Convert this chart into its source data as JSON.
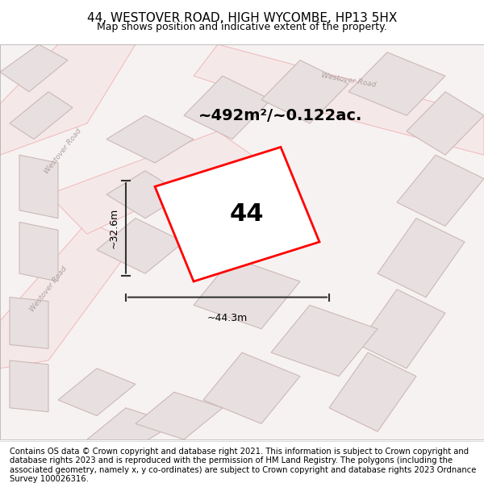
{
  "title": "44, WESTOVER ROAD, HIGH WYCOMBE, HP13 5HX",
  "subtitle": "Map shows position and indicative extent of the property.",
  "footer": "Contains OS data © Crown copyright and database right 2021. This information is subject to Crown copyright and database rights 2023 and is reproduced with the permission of HM Land Registry. The polygons (including the associated geometry, namely x, y co-ordinates) are subject to Crown copyright and database rights 2023 Ordnance Survey 100026316.",
  "area_label": "~492m²/~0.122ac.",
  "number_label": "44",
  "dim_width": "~44.3m",
  "dim_height": "~32.6m",
  "bg_color": "#f5f0f0",
  "map_bg": "#f8f4f4",
  "road_color": "#f0b8b8",
  "building_color": "#e8e0e0",
  "building_edge": "#ccb8b8",
  "road_label_color": "#b0a0a0",
  "property_color": "red",
  "dim_color": "#333333",
  "title_fontsize": 11,
  "subtitle_fontsize": 9,
  "footer_fontsize": 7.2
}
